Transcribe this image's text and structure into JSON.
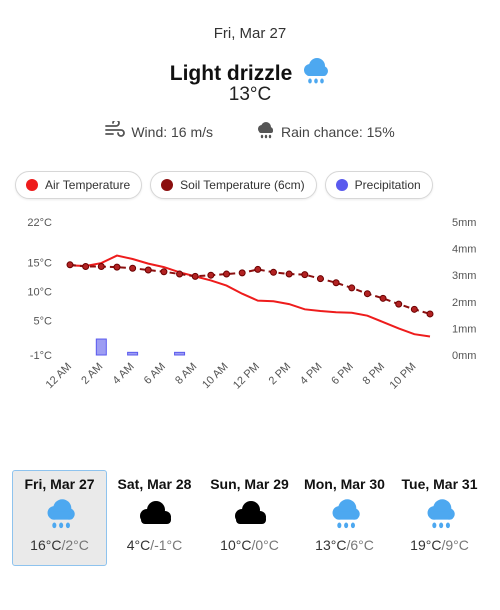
{
  "header": {
    "date": "Fri, Mar 27",
    "condition": "Light drizzle",
    "condition_icon": "rain-cloud-icon",
    "temperature": "13°C",
    "wind": "Wind: 16 m/s",
    "rain_chance": "Rain chance: 15%"
  },
  "legend": [
    {
      "label": "Air Temperature",
      "color": "#ee1c1c"
    },
    {
      "label": "Soil Temperature (6cm)",
      "color": "#8b0f0f"
    },
    {
      "label": "Precipitation",
      "color": "#5a5aee"
    }
  ],
  "chart_data": {
    "type": "line",
    "x": [
      "12 AM",
      "1 AM",
      "2 AM",
      "3 AM",
      "4 AM",
      "5 AM",
      "6 AM",
      "7 AM",
      "8 AM",
      "9 AM",
      "10 AM",
      "11 AM",
      "12 PM",
      "1 PM",
      "2 PM",
      "3 PM",
      "4 PM",
      "5 PM",
      "6 PM",
      "7 PM",
      "8 PM",
      "9 PM",
      "10 PM",
      "11 PM"
    ],
    "x_ticks": [
      "12 AM",
      "2 AM",
      "4 AM",
      "6 AM",
      "8 AM",
      "10 AM",
      "12 PM",
      "2 PM",
      "4 PM",
      "6 PM",
      "8 PM",
      "10 PM"
    ],
    "left_axis": {
      "ticks": [
        "22°C",
        "15°C",
        "10°C",
        "5°C",
        "-1°C"
      ],
      "tick_values": [
        22,
        15,
        10,
        5,
        -1
      ],
      "range": [
        -1,
        22
      ]
    },
    "right_axis": {
      "ticks": [
        "5mm",
        "4mm",
        "3mm",
        "2mm",
        "1mm",
        "0mm"
      ],
      "tick_values": [
        5,
        4,
        3,
        2,
        1,
        0
      ],
      "range": [
        0,
        5
      ]
    },
    "series": [
      {
        "name": "Air Temperature",
        "color": "#ee1c1c",
        "axis": "left",
        "values": [
          14.5,
          14.4,
          14.9,
          16.2,
          15.6,
          14.8,
          14.2,
          13.3,
          12.6,
          11.9,
          11.0,
          9.6,
          8.4,
          8.3,
          7.8,
          6.9,
          6.6,
          6.4,
          6.3,
          5.8,
          4.7,
          3.6,
          2.6,
          2.2
        ]
      },
      {
        "name": "Soil Temperature (6cm)",
        "color": "#8b0f0f",
        "axis": "left",
        "values": [
          14.6,
          14.3,
          14.3,
          14.2,
          14.0,
          13.7,
          13.4,
          13.0,
          12.6,
          12.8,
          13.0,
          13.2,
          13.8,
          13.3,
          13.0,
          12.9,
          12.2,
          11.5,
          10.6,
          9.6,
          8.8,
          7.8,
          6.9,
          6.1
        ]
      },
      {
        "name": "Precipitation",
        "color": "#5a5aee",
        "axis": "right",
        "type": "bar",
        "values": [
          0,
          0,
          0.6,
          0,
          0.1,
          0,
          0,
          0.1,
          0,
          0,
          0,
          0,
          0,
          0,
          0,
          0,
          0,
          0,
          0,
          0,
          0,
          0,
          0,
          0
        ]
      }
    ],
    "grid": false
  },
  "forecast": [
    {
      "day": "Fri, Mar 27",
      "high": "16°C",
      "low": "2°C",
      "icon": "rain-cloud-icon",
      "selected": true
    },
    {
      "day": "Sat, Mar 28",
      "high": "4°C",
      "low": "-1°C",
      "icon": "black-cloud-icon",
      "selected": false
    },
    {
      "day": "Sun, Mar 29",
      "high": "10°C",
      "low": "0°C",
      "icon": "black-cloud-icon",
      "selected": false
    },
    {
      "day": "Mon, Mar 30",
      "high": "13°C",
      "low": "6°C",
      "icon": "rain-cloud-icon",
      "selected": false
    },
    {
      "day": "Tue, Mar 31",
      "high": "19°C",
      "low": "9°C",
      "icon": "rain-cloud-icon",
      "selected": false
    }
  ],
  "colors": {
    "rain_icon": "#4da8f0",
    "cloud_icon": "#000000",
    "selected_border": "#8ec3ee",
    "selected_background": "#eaeaea"
  }
}
